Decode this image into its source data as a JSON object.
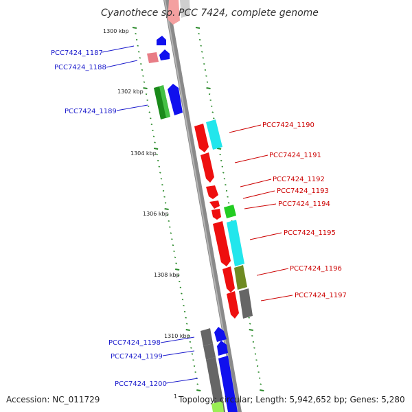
{
  "title": "Cyanothece sp. PCC 7424, complete genome",
  "footer": {
    "accession": "Accession: NC_011729",
    "topology_marker": "1",
    "summary": "Topology: circular; Length: 5,942,652 bp; Genes: 5,280"
  },
  "colors": {
    "backbone": "#8a8a8a",
    "tick": "#2a8a2a",
    "label_left": "#1a1acc",
    "label_right": "#cc0000"
  },
  "scale_labels": [
    "1300 kbp",
    "1302 kbp",
    "1304 kbp",
    "1306 kbp",
    "1308 kbp",
    "1310 kbp"
  ],
  "genes_left": [
    {
      "id": "PCC7424_1187"
    },
    {
      "id": "PCC7424_1188"
    },
    {
      "id": "PCC7424_1189"
    },
    {
      "id": "PCC7424_1198"
    },
    {
      "id": "PCC7424_1199"
    },
    {
      "id": "PCC7424_1200"
    }
  ],
  "genes_right": [
    {
      "id": "PCC7424_1190"
    },
    {
      "id": "PCC7424_1191"
    },
    {
      "id": "PCC7424_1192"
    },
    {
      "id": "PCC7424_1193"
    },
    {
      "id": "PCC7424_1194"
    },
    {
      "id": "PCC7424_1195"
    },
    {
      "id": "PCC7424_1196"
    },
    {
      "id": "PCC7424_1197"
    }
  ]
}
